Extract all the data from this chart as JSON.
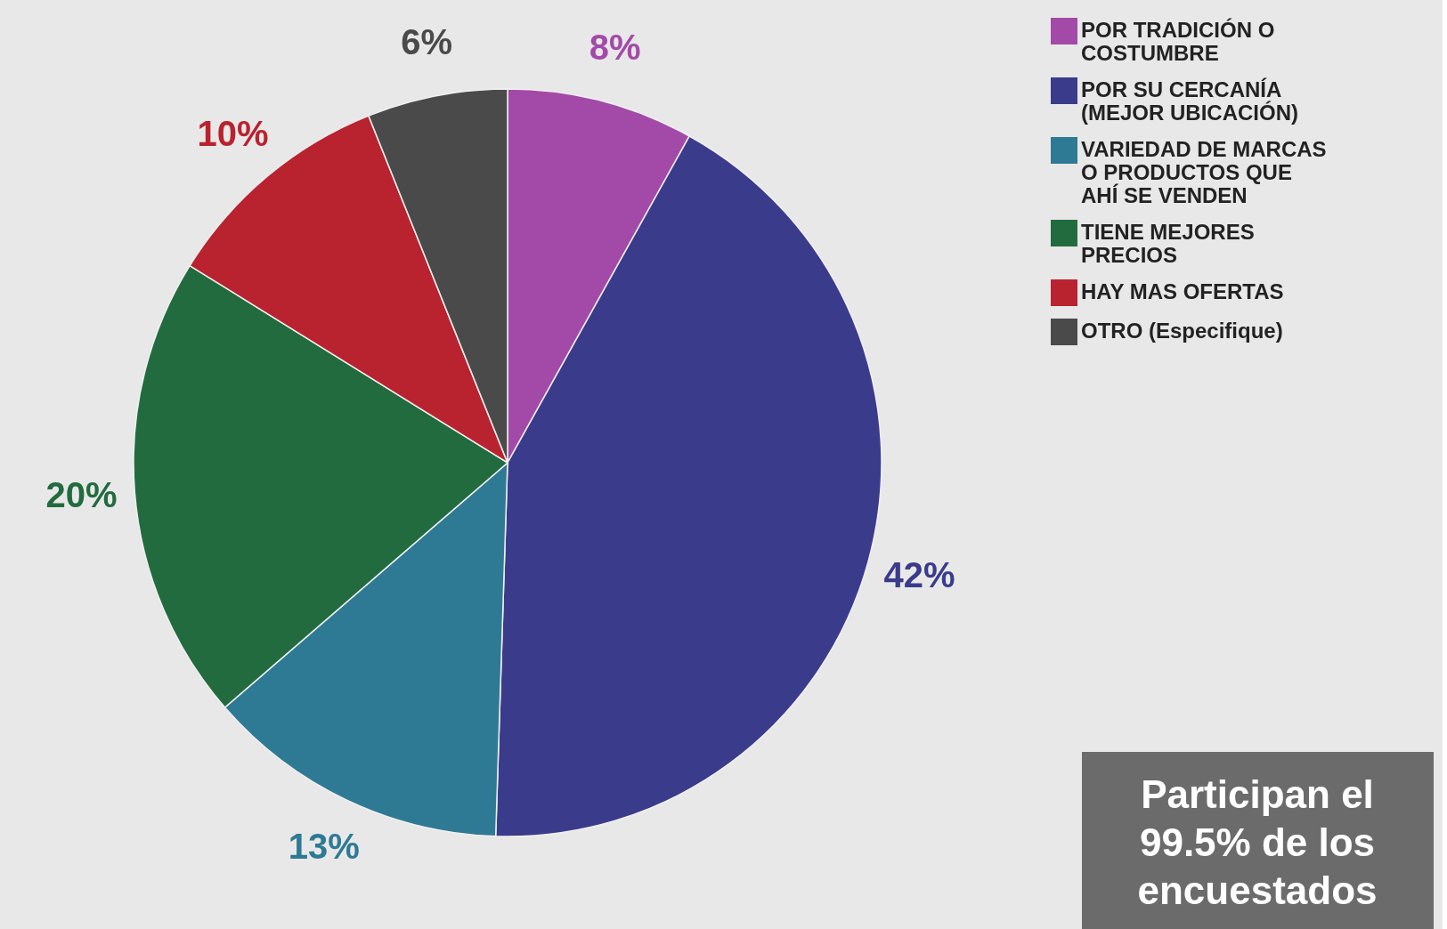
{
  "chart_data": {
    "type": "pie",
    "categories": [
      "POR TRADICIÓN O COSTUMBRE",
      "POR SU CERCANÍA (MEJOR UBICACIÓN)",
      "VARIEDAD DE MARCAS O PRODUCTOS QUE AHÍ SE VENDEN",
      "TIENE MEJORES PRECIOS",
      "HAY MAS OFERTAS",
      "OTRO (Especifique)"
    ],
    "values": [
      8,
      42,
      13,
      20,
      10,
      6
    ],
    "colors": [
      "#a34aa8",
      "#3b3b8c",
      "#2e7a95",
      "#226b3e",
      "#b8232f",
      "#4a4a4a"
    ],
    "value_labels": [
      "8%",
      "42%",
      "13%",
      "20%",
      "10%",
      "6%"
    ],
    "legend": "top right",
    "annotations": [
      "Participan el 99.5% de los encuestados"
    ]
  }
}
